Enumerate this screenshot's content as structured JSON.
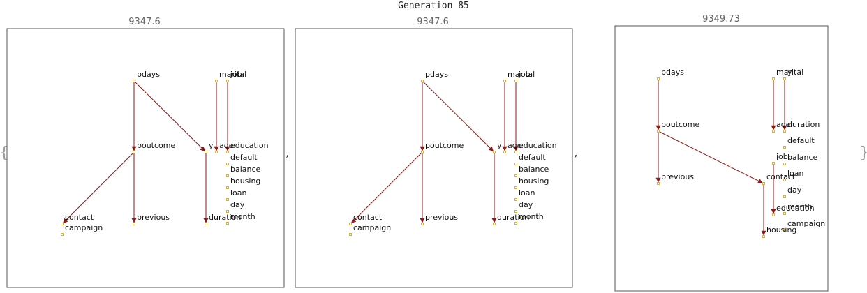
{
  "title": "Generation 85",
  "open_brace": "{",
  "close_brace": "}",
  "separator": ",",
  "colors": {
    "edge": "#8b1a1a",
    "node": "#d9b23a"
  },
  "panels": [
    {
      "score": "9347.6",
      "nodes": [
        {
          "id": "pdays",
          "label": "pdays"
        },
        {
          "id": "marital",
          "label": "marital"
        },
        {
          "id": "job",
          "label": "job"
        },
        {
          "id": "poutcome",
          "label": "poutcome"
        },
        {
          "id": "y",
          "label": "y"
        },
        {
          "id": "age",
          "label": "age"
        },
        {
          "id": "education",
          "label": "education"
        },
        {
          "id": "default",
          "label": "default"
        },
        {
          "id": "balance",
          "label": "balance"
        },
        {
          "id": "housing",
          "label": "housing"
        },
        {
          "id": "loan",
          "label": "loan"
        },
        {
          "id": "day",
          "label": "day"
        },
        {
          "id": "month",
          "label": "month"
        },
        {
          "id": "contact",
          "label": "contact"
        },
        {
          "id": "campaign",
          "label": "campaign"
        },
        {
          "id": "previous",
          "label": "previous"
        },
        {
          "id": "duration",
          "label": "duration"
        }
      ],
      "edges": [
        [
          "pdays",
          "poutcome"
        ],
        [
          "pdays",
          "y"
        ],
        [
          "marital",
          "age"
        ],
        [
          "job",
          "education"
        ],
        [
          "poutcome",
          "contact"
        ],
        [
          "poutcome",
          "previous"
        ],
        [
          "y",
          "duration"
        ]
      ]
    },
    {
      "score": "9347.6",
      "nodes": [
        {
          "id": "pdays",
          "label": "pdays"
        },
        {
          "id": "marital",
          "label": "marital"
        },
        {
          "id": "job",
          "label": "job"
        },
        {
          "id": "poutcome",
          "label": "poutcome"
        },
        {
          "id": "y",
          "label": "y"
        },
        {
          "id": "age",
          "label": "age"
        },
        {
          "id": "education",
          "label": "education"
        },
        {
          "id": "default",
          "label": "default"
        },
        {
          "id": "balance",
          "label": "balance"
        },
        {
          "id": "housing",
          "label": "housing"
        },
        {
          "id": "loan",
          "label": "loan"
        },
        {
          "id": "day",
          "label": "day"
        },
        {
          "id": "month",
          "label": "month"
        },
        {
          "id": "contact",
          "label": "contact"
        },
        {
          "id": "campaign",
          "label": "campaign"
        },
        {
          "id": "previous",
          "label": "previous"
        },
        {
          "id": "duration",
          "label": "duration"
        }
      ],
      "edges": [
        [
          "pdays",
          "poutcome"
        ],
        [
          "pdays",
          "y"
        ],
        [
          "marital",
          "age"
        ],
        [
          "job",
          "education"
        ],
        [
          "poutcome",
          "contact"
        ],
        [
          "poutcome",
          "previous"
        ],
        [
          "y",
          "duration"
        ]
      ]
    },
    {
      "score": "9349.73",
      "nodes": [
        {
          "id": "pdays",
          "label": "pdays"
        },
        {
          "id": "marital",
          "label": "marital"
        },
        {
          "id": "y",
          "label": "y"
        },
        {
          "id": "poutcome",
          "label": "poutcome"
        },
        {
          "id": "age",
          "label": "age"
        },
        {
          "id": "duration",
          "label": "duration"
        },
        {
          "id": "default",
          "label": "default"
        },
        {
          "id": "balance",
          "label": "balance"
        },
        {
          "id": "job",
          "label": "job"
        },
        {
          "id": "loan",
          "label": "loan"
        },
        {
          "id": "previous",
          "label": "previous"
        },
        {
          "id": "contact",
          "label": "contact"
        },
        {
          "id": "day",
          "label": "day"
        },
        {
          "id": "month",
          "label": "month"
        },
        {
          "id": "education",
          "label": "education"
        },
        {
          "id": "campaign",
          "label": "campaign"
        },
        {
          "id": "housing",
          "label": "housing"
        }
      ],
      "edges": [
        [
          "pdays",
          "poutcome"
        ],
        [
          "marital",
          "age"
        ],
        [
          "y",
          "duration"
        ],
        [
          "poutcome",
          "previous"
        ],
        [
          "poutcome",
          "contact"
        ],
        [
          "job",
          "education"
        ],
        [
          "contact",
          "housing"
        ]
      ]
    }
  ]
}
